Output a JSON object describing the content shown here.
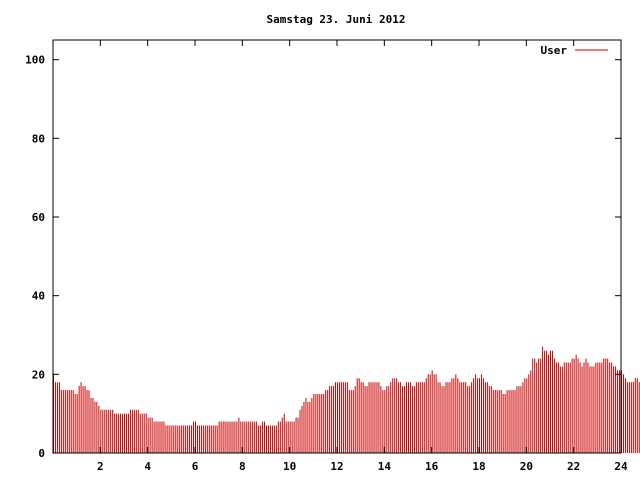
{
  "chart_data": {
    "type": "bar",
    "title": "Samstag 23. Juni 2012",
    "xlabel": "",
    "ylabel": "",
    "xlim": [
      0,
      24
    ],
    "ylim": [
      0,
      105
    ],
    "xticks": [
      "2",
      "4",
      "6",
      "8",
      "10",
      "12",
      "14",
      "16",
      "18",
      "20",
      "22",
      "24"
    ],
    "yticks": [
      "0",
      "20",
      "40",
      "60",
      "80",
      "100"
    ],
    "grid": false,
    "legend_position": "top-right",
    "color": "#cc0000",
    "series": [
      {
        "name": "User",
        "interval_minutes": 5,
        "values": [
          20,
          18,
          18,
          18,
          16,
          16,
          16,
          16,
          16,
          16,
          16,
          15,
          15,
          17,
          18,
          17,
          17,
          16,
          16,
          14,
          14,
          13,
          13,
          12,
          11,
          11,
          11,
          11,
          11,
          11,
          11,
          10,
          10,
          10,
          10,
          10,
          10,
          10,
          10,
          11,
          11,
          11,
          11,
          11,
          10,
          10,
          10,
          10,
          9,
          9,
          9,
          8,
          8,
          8,
          8,
          8,
          8,
          7,
          7,
          7,
          7,
          7,
          7,
          7,
          7,
          7,
          7,
          7,
          7,
          7,
          7,
          8,
          8,
          7,
          7,
          7,
          7,
          7,
          7,
          7,
          7,
          7,
          7,
          7,
          8,
          8,
          8,
          8,
          8,
          8,
          8,
          8,
          8,
          8,
          9,
          8,
          8,
          8,
          8,
          8,
          8,
          8,
          8,
          8,
          7,
          7,
          8,
          8,
          7,
          7,
          7,
          7,
          7,
          7,
          8,
          8,
          9,
          10,
          8,
          8,
          8,
          8,
          8,
          9,
          9,
          11,
          12,
          13,
          14,
          13,
          13,
          14,
          15,
          15,
          15,
          15,
          15,
          15,
          16,
          16,
          17,
          17,
          17,
          18,
          18,
          18,
          18,
          18,
          18,
          18,
          16,
          16,
          16,
          17,
          19,
          19,
          18,
          18,
          17,
          17,
          18,
          18,
          18,
          18,
          18,
          18,
          17,
          16,
          16,
          17,
          17,
          18,
          19,
          19,
          19,
          18,
          18,
          17,
          17,
          18,
          18,
          18,
          17,
          17,
          18,
          18,
          18,
          18,
          18,
          19,
          20,
          20,
          21,
          20,
          20,
          18,
          18,
          17,
          17,
          18,
          18,
          18,
          19,
          19,
          20,
          19,
          18,
          18,
          18,
          18,
          17,
          17,
          18,
          19,
          20,
          19,
          19,
          20,
          19,
          18,
          18,
          17,
          17,
          16,
          16,
          16,
          16,
          16,
          15,
          15,
          16,
          16,
          16,
          16,
          16,
          17,
          17,
          17,
          18,
          19,
          19,
          20,
          21,
          24,
          24,
          23,
          24,
          24,
          27,
          26,
          26,
          25,
          26,
          26,
          24,
          23,
          23,
          22,
          22,
          23,
          23,
          23,
          23,
          24,
          24,
          25,
          24,
          23,
          22,
          23,
          24,
          23,
          22,
          22,
          22,
          23,
          23,
          23,
          23,
          24,
          24,
          24,
          23,
          23,
          22,
          22,
          21,
          21,
          21,
          20,
          19,
          18,
          18,
          18,
          18,
          19,
          19,
          18,
          19,
          20
        ]
      }
    ]
  }
}
